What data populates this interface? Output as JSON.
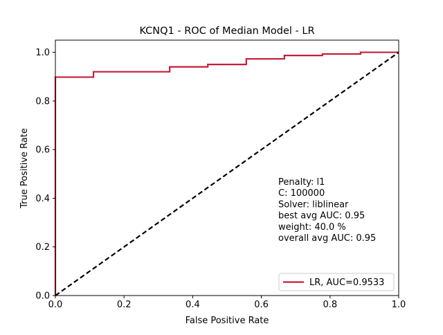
{
  "figure": {
    "background": "#ffffff"
  },
  "chart_data": {
    "type": "line",
    "title": "KCNQ1 - ROC of Median Model - LR",
    "xlabel": "False Positive Rate",
    "ylabel": "True Positive Rate",
    "xlim": [
      0.0,
      1.0
    ],
    "ylim": [
      0.0,
      1.05
    ],
    "x_ticks": [
      0.0,
      0.2,
      0.4,
      0.6,
      0.8,
      1.0
    ],
    "y_ticks": [
      0.0,
      0.2,
      0.4,
      0.6,
      0.8,
      1.0
    ],
    "x_tick_labels": [
      "0.0",
      "0.2",
      "0.4",
      "0.6",
      "0.8",
      "1.0"
    ],
    "y_tick_labels": [
      "0.0",
      "0.2",
      "0.4",
      "0.6",
      "0.8",
      "1.0"
    ],
    "grid": false,
    "legend": {
      "position": "lower-right",
      "entries": [
        "LR, AUC=0.9533"
      ]
    },
    "series": [
      {
        "name": "LR, AUC=0.9533",
        "color": "#c41e3a",
        "style": "solid",
        "x": [
          0.0,
          0.0,
          0.111,
          0.111,
          0.333,
          0.333,
          0.444,
          0.444,
          0.556,
          0.556,
          0.667,
          0.667,
          0.778,
          0.778,
          0.889,
          0.889,
          1.0
        ],
        "y": [
          0.0,
          0.898,
          0.898,
          0.92,
          0.92,
          0.94,
          0.94,
          0.95,
          0.95,
          0.973,
          0.973,
          0.987,
          0.987,
          0.993,
          0.993,
          1.0,
          1.0
        ]
      },
      {
        "color": "#000000",
        "style": "dashed",
        "x": [
          0.0,
          1.0
        ],
        "y": [
          0.0,
          1.0
        ]
      }
    ],
    "annotation_lines": [
      "Penalty: l1",
      "C: 100000",
      "Solver: liblinear",
      "best avg AUC: 0.95",
      "weight: 40.0 %",
      "overall avg AUC: 0.95"
    ]
  }
}
